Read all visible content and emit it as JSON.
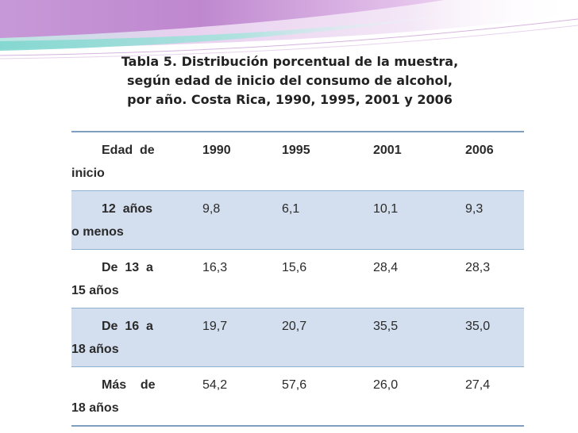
{
  "title": {
    "line1": "Tabla 5. Distribución porcentual de la muestra,",
    "line2": "según edad de inicio del consumo de alcohol,",
    "line3": "por año.  Costa Rica, 1990, 1995, 2001 y 2006"
  },
  "table": {
    "header": {
      "label_line1": "Edad  de",
      "label_line2": "inicio",
      "years": [
        "1990",
        "1995",
        "2001",
        "2006"
      ]
    },
    "rows": [
      {
        "label_line1": "12  años",
        "label_line2": "o menos",
        "values": [
          "9,8",
          "6,1",
          "10,1",
          "9,3"
        ]
      },
      {
        "label_line1": "De  13  a",
        "label_line2": "15 años",
        "values": [
          "16,3",
          "15,6",
          "28,4",
          "28,3"
        ]
      },
      {
        "label_line1": "De  16  a",
        "label_line2": "18 años",
        "values": [
          "19,7",
          "20,7",
          "35,5",
          "35,0"
        ]
      },
      {
        "label_line1": "Más    de",
        "label_line2": "18 años",
        "values": [
          "54,2",
          "57,6",
          "26,0",
          "27,4"
        ]
      }
    ]
  },
  "colors": {
    "banner_purple": "#c98bd6",
    "banner_teal": "#7fd6cf",
    "row_shade": "#d3dfee",
    "rule": "#7f9fc0"
  }
}
